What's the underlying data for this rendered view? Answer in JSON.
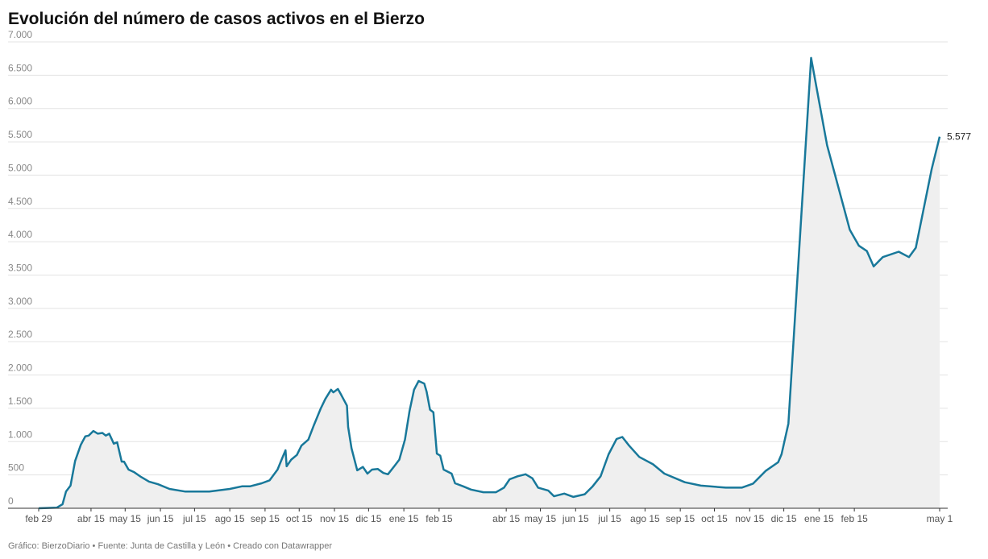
{
  "chart_data": {
    "type": "area",
    "title": "Evolución del número de casos activos en el Bierzo",
    "source": "Gráfico: BierzoDiario • Fuente: Junta de Castilla y León • Creado con Datawrapper",
    "x": [
      0,
      16,
      21,
      24,
      28,
      32,
      37,
      41,
      44,
      48,
      52,
      56,
      59,
      62,
      66,
      69,
      73,
      75,
      79,
      84,
      90,
      97,
      105,
      115,
      129,
      150,
      168,
      179,
      186,
      196,
      203,
      210,
      214,
      217,
      218,
      222,
      227,
      231,
      237,
      242,
      248,
      252,
      257,
      259,
      263,
      266,
      271,
      272,
      275,
      280,
      285,
      289,
      293,
      298,
      303,
      307,
      313,
      317,
      322,
      326,
      330,
      334,
      339,
      341,
      344,
      347,
      350,
      353,
      356,
      363,
      366,
      373,
      380,
      391,
      402,
      409,
      414,
      421,
      428,
      434,
      439,
      448,
      453,
      462,
      470,
      480,
      487,
      494,
      501,
      508,
      513,
      519,
      528,
      540,
      550,
      568,
      582,
      604,
      618,
      628,
      639,
      650,
      653,
      659,
      679,
      693,
      713,
      721,
      728,
      734,
      742,
      756,
      765,
      771,
      785,
      792
    ],
    "series": [
      {
        "color": "#18789a",
        "fill": "#efefef",
        "values": [
          0,
          10,
          60,
          250,
          340,
          710,
          950,
          1080,
          1090,
          1160,
          1120,
          1130,
          1090,
          1120,
          970,
          990,
          700,
          700,
          580,
          540,
          470,
          400,
          360,
          290,
          250,
          250,
          290,
          330,
          330,
          375,
          420,
          580,
          750,
          870,
          630,
          730,
          800,
          940,
          1030,
          1250,
          1500,
          1640,
          1780,
          1740,
          1790,
          1700,
          1540,
          1220,
          900,
          570,
          620,
          520,
          580,
          590,
          530,
          510,
          640,
          730,
          1030,
          1460,
          1780,
          1910,
          1870,
          1750,
          1480,
          1440,
          820,
          790,
          580,
          520,
          375,
          330,
          280,
          240,
          240,
          310,
          435,
          480,
          510,
          450,
          310,
          265,
          180,
          220,
          170,
          210,
          330,
          480,
          810,
          1040,
          1070,
          940,
          770,
          660,
          520,
          390,
          340,
          310,
          310,
          370,
          560,
          690,
          810,
          1270,
          6760,
          5450,
          4180,
          3940,
          3860,
          3630,
          3770,
          3850,
          3770,
          3910,
          5090,
          5577
        ],
        "value_labels": [
          null,
          null,
          null,
          null,
          null,
          null,
          null,
          null,
          null,
          null,
          null,
          null,
          null,
          null,
          null,
          null,
          null,
          null,
          null,
          null,
          null,
          null,
          null,
          null,
          null,
          null,
          null,
          null,
          null,
          null,
          null,
          null,
          null,
          null,
          null,
          null,
          null,
          null,
          null,
          null,
          null,
          null,
          null,
          null,
          null,
          null,
          null,
          null,
          null,
          null,
          null,
          null,
          null,
          null,
          null,
          null,
          null,
          null,
          null,
          null,
          null,
          null,
          null,
          null,
          null,
          null,
          null,
          null,
          null,
          null,
          null,
          null,
          null,
          null,
          null,
          null,
          null,
          null,
          null,
          null,
          null,
          null,
          null,
          null,
          null,
          null,
          null,
          null,
          null,
          null,
          null,
          null,
          null,
          null,
          null,
          null,
          null,
          null,
          null,
          null,
          null,
          null,
          null,
          null,
          null,
          null,
          null,
          null,
          null,
          null,
          null,
          null,
          null,
          null,
          null,
          "5.577"
        ]
      }
    ],
    "xlim": [
      0,
      792
    ],
    "xticks": [
      {
        "value": 0,
        "label": "feb 29"
      },
      {
        "value": 46,
        "label": "abr 15"
      },
      {
        "value": 76,
        "label": "may 15"
      },
      {
        "value": 107,
        "label": "jun 15"
      },
      {
        "value": 137,
        "label": "jul 15"
      },
      {
        "value": 168,
        "label": "ago 15"
      },
      {
        "value": 199,
        "label": "sep 15"
      },
      {
        "value": 229,
        "label": "oct 15"
      },
      {
        "value": 260,
        "label": "nov 15"
      },
      {
        "value": 290,
        "label": "dic 15"
      },
      {
        "value": 321,
        "label": "ene 15"
      },
      {
        "value": 352,
        "label": "feb 15"
      },
      {
        "value": 411,
        "label": "abr 15"
      },
      {
        "value": 441,
        "label": "may 15"
      },
      {
        "value": 472,
        "label": "jun 15"
      },
      {
        "value": 502,
        "label": "jul 15"
      },
      {
        "value": 533,
        "label": "ago 15"
      },
      {
        "value": 564,
        "label": "sep 15"
      },
      {
        "value": 594,
        "label": "oct 15"
      },
      {
        "value": 625,
        "label": "nov 15"
      },
      {
        "value": 655,
        "label": "dic 15"
      },
      {
        "value": 686,
        "label": "ene 15"
      },
      {
        "value": 717,
        "label": "feb 15"
      },
      {
        "value": 792,
        "label": "may 1"
      }
    ],
    "ylim": [
      0,
      7000
    ],
    "yticks": [
      0,
      500,
      {
        "value": 1000,
        "label": "1.000"
      },
      {
        "value": 1500,
        "label": "1.500"
      },
      {
        "value": 2000,
        "label": "2.000"
      },
      {
        "value": 2500,
        "label": "2.500"
      },
      {
        "value": 3000,
        "label": "3.000"
      },
      {
        "value": 3500,
        "label": "3.500"
      },
      {
        "value": 4000,
        "label": "4.000"
      },
      {
        "value": 4500,
        "label": "4.500"
      },
      {
        "value": 5000,
        "label": "5.000"
      },
      {
        "value": 5500,
        "label": "5.500"
      },
      {
        "value": 6000,
        "label": "6.000"
      },
      {
        "value": 6500,
        "label": "6.500"
      },
      {
        "value": 7000,
        "label": "7.000"
      }
    ],
    "grid": true
  }
}
